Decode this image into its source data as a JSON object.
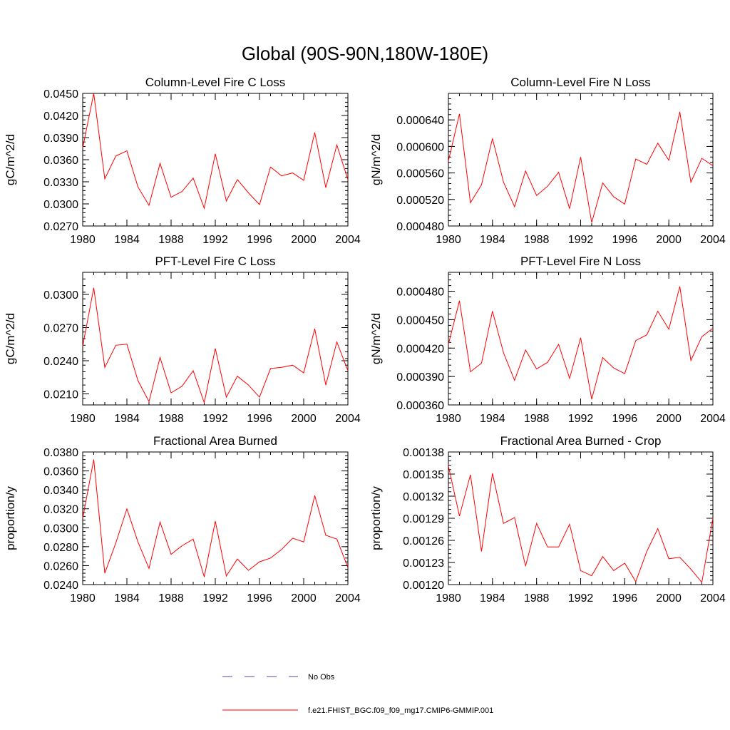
{
  "figure": {
    "title": "Global (90S-90N,180W-180E)"
  },
  "legend": {
    "entries": [
      {
        "label": "No Obs",
        "color": "#4a4aa0",
        "style": "dashed"
      },
      {
        "label": "f.e21.FHIST_BGC.f09_f09_mg17.CMIP6-GMMIP.001",
        "color": "#ff0000",
        "style": "solid"
      }
    ]
  },
  "chart_data": [
    {
      "type": "line",
      "title": "Column-Level Fire C Loss",
      "xlabel": "",
      "ylabel": "gC/m^2/d",
      "xlim": [
        1980,
        2004
      ],
      "ylim": [
        0.027,
        0.045
      ],
      "x_ticks": [
        "1980",
        "1984",
        "1988",
        "1992",
        "1996",
        "2000",
        "2004"
      ],
      "y_ticks": [
        "0.0270",
        "0.0300",
        "0.0330",
        "0.0360",
        "0.0390",
        "0.0420",
        "0.0450"
      ],
      "series": [
        {
          "name": "f.e21.FHIST_BGC.f09_f09_mg17.CMIP6-GMMIP.001",
          "color": "#ff0000",
          "x": [
            1980,
            1981,
            1982,
            1983,
            1984,
            1985,
            1986,
            1987,
            1988,
            1989,
            1990,
            1991,
            1992,
            1993,
            1994,
            1995,
            1996,
            1997,
            1998,
            1999,
            2000,
            2001,
            2002,
            2003,
            2004
          ],
          "values": [
            0.0376,
            0.045,
            0.0334,
            0.0365,
            0.0372,
            0.0323,
            0.0298,
            0.0355,
            0.0309,
            0.0317,
            0.0335,
            0.0294,
            0.0368,
            0.0304,
            0.0333,
            0.0315,
            0.0299,
            0.035,
            0.0338,
            0.0342,
            0.0332,
            0.0397,
            0.0322,
            0.038,
            0.0333
          ]
        }
      ]
    },
    {
      "type": "line",
      "title": "Column-Level Fire N Loss",
      "xlabel": "",
      "ylabel": "gN/m^2/d",
      "xlim": [
        1980,
        2004
      ],
      "ylim": [
        0.00048,
        0.00068
      ],
      "x_ticks": [
        "1980",
        "1984",
        "1988",
        "1992",
        "1996",
        "2000",
        "2004"
      ],
      "y_ticks": [
        "0.000480",
        "0.000520",
        "0.000560",
        "0.000600",
        "0.000640"
      ],
      "series": [
        {
          "name": "f.e21.FHIST_BGC.f09_f09_mg17.CMIP6-GMMIP.001",
          "color": "#ff0000",
          "x": [
            1980,
            1981,
            1982,
            1983,
            1984,
            1985,
            1986,
            1987,
            1988,
            1989,
            1990,
            1991,
            1992,
            1993,
            1994,
            1995,
            1996,
            1997,
            1998,
            1999,
            2000,
            2001,
            2002,
            2003,
            2004
          ],
          "values": [
            0.000578,
            0.000649,
            0.000515,
            0.000542,
            0.000612,
            0.000546,
            0.000509,
            0.000563,
            0.000526,
            0.00054,
            0.000561,
            0.000506,
            0.000584,
            0.000485,
            0.000545,
            0.000524,
            0.000513,
            0.000581,
            0.000573,
            0.000605,
            0.000579,
            0.000652,
            0.000546,
            0.000582,
            0.000571
          ]
        }
      ]
    },
    {
      "type": "line",
      "title": "PFT-Level Fire C Loss",
      "xlabel": "",
      "ylabel": "gC/m^2/d",
      "xlim": [
        1980,
        2004
      ],
      "ylim": [
        0.02,
        0.032
      ],
      "x_ticks": [
        "1980",
        "1984",
        "1988",
        "1992",
        "1996",
        "2000",
        "2004"
      ],
      "y_ticks": [
        "0.0210",
        "0.0240",
        "0.0270",
        "0.0300"
      ],
      "series": [
        {
          "name": "f.e21.FHIST_BGC.f09_f09_mg17.CMIP6-GMMIP.001",
          "color": "#ff0000",
          "x": [
            1980,
            1981,
            1982,
            1983,
            1984,
            1985,
            1986,
            1987,
            1988,
            1989,
            1990,
            1991,
            1992,
            1993,
            1994,
            1995,
            1996,
            1997,
            1998,
            1999,
            2000,
            2001,
            2002,
            2003,
            2004
          ],
          "values": [
            0.0253,
            0.0306,
            0.0234,
            0.0254,
            0.0255,
            0.0222,
            0.0203,
            0.0243,
            0.0211,
            0.0217,
            0.0231,
            0.0202,
            0.0251,
            0.0207,
            0.0226,
            0.0218,
            0.0207,
            0.0233,
            0.0234,
            0.0236,
            0.0229,
            0.0269,
            0.0218,
            0.0257,
            0.0231
          ]
        }
      ]
    },
    {
      "type": "line",
      "title": "PFT-Level Fire N Loss",
      "xlabel": "",
      "ylabel": "gN/m^2/d",
      "xlim": [
        1980,
        2004
      ],
      "ylim": [
        0.00036,
        0.0005
      ],
      "x_ticks": [
        "1980",
        "1984",
        "1988",
        "1992",
        "1996",
        "2000",
        "2004"
      ],
      "y_ticks": [
        "0.000360",
        "0.000390",
        "0.000420",
        "0.000450",
        "0.000480"
      ],
      "series": [
        {
          "name": "f.e21.FHIST_BGC.f09_f09_mg17.CMIP6-GMMIP.001",
          "color": "#ff0000",
          "x": [
            1980,
            1981,
            1982,
            1983,
            1984,
            1985,
            1986,
            1987,
            1988,
            1989,
            1990,
            1991,
            1992,
            1993,
            1994,
            1995,
            1996,
            1997,
            1998,
            1999,
            2000,
            2001,
            2002,
            2003,
            2004
          ],
          "values": [
            0.000424,
            0.00047,
            0.000395,
            0.000404,
            0.000459,
            0.000415,
            0.000386,
            0.000418,
            0.000398,
            0.000405,
            0.000424,
            0.000388,
            0.000431,
            0.000366,
            0.00041,
            0.000399,
            0.000393,
            0.000428,
            0.000434,
            0.000459,
            0.00044,
            0.000485,
            0.000407,
            0.000432,
            0.000441
          ]
        }
      ]
    },
    {
      "type": "line",
      "title": "Fractional Area Burned",
      "xlabel": "",
      "ylabel": "proportion/y",
      "xlim": [
        1980,
        2004
      ],
      "ylim": [
        0.024,
        0.038
      ],
      "x_ticks": [
        "1980",
        "1984",
        "1988",
        "1992",
        "1996",
        "2000",
        "2004"
      ],
      "y_ticks": [
        "0.0240",
        "0.0260",
        "0.0280",
        "0.0300",
        "0.0320",
        "0.0340",
        "0.0360",
        "0.0380"
      ],
      "series": [
        {
          "name": "f.e21.FHIST_BGC.f09_f09_mg17.CMIP6-GMMIP.001",
          "color": "#ff0000",
          "x": [
            1980,
            1981,
            1982,
            1983,
            1984,
            1985,
            1986,
            1987,
            1988,
            1989,
            1990,
            1991,
            1992,
            1993,
            1994,
            1995,
            1996,
            1997,
            1998,
            1999,
            2000,
            2001,
            2002,
            2003,
            2004
          ],
          "values": [
            0.031,
            0.0372,
            0.0252,
            0.0284,
            0.032,
            0.0285,
            0.0257,
            0.0306,
            0.0272,
            0.0281,
            0.0288,
            0.0248,
            0.0307,
            0.0249,
            0.0267,
            0.0255,
            0.0264,
            0.0268,
            0.0277,
            0.0289,
            0.0285,
            0.0334,
            0.0292,
            0.0288,
            0.0258
          ]
        }
      ]
    },
    {
      "type": "line",
      "title": "Fractional Area Burned - Crop",
      "xlabel": "",
      "ylabel": "proportion/y",
      "xlim": [
        1980,
        2004
      ],
      "ylim": [
        0.0012,
        0.00138
      ],
      "x_ticks": [
        "1980",
        "1984",
        "1988",
        "1992",
        "1996",
        "2000",
        "2004"
      ],
      "y_ticks": [
        "0.00120",
        "0.00123",
        "0.00126",
        "0.00129",
        "0.00132",
        "0.00135",
        "0.00138"
      ],
      "series": [
        {
          "name": "f.e21.FHIST_BGC.f09_f09_mg17.CMIP6-GMMIP.001",
          "color": "#ff0000",
          "x": [
            1980,
            1981,
            1982,
            1983,
            1984,
            1985,
            1986,
            1987,
            1988,
            1989,
            1990,
            1991,
            1992,
            1993,
            1994,
            1995,
            1996,
            1997,
            1998,
            1999,
            2000,
            2001,
            2002,
            2003,
            2004
          ],
          "values": [
            0.001361,
            0.001293,
            0.001349,
            0.001245,
            0.001351,
            0.001283,
            0.001291,
            0.001225,
            0.001283,
            0.001251,
            0.001251,
            0.001282,
            0.001219,
            0.001212,
            0.001238,
            0.001219,
            0.001229,
            0.001204,
            0.001245,
            0.001276,
            0.001235,
            0.001237,
            0.001221,
            0.001203,
            0.00129
          ]
        }
      ]
    }
  ]
}
